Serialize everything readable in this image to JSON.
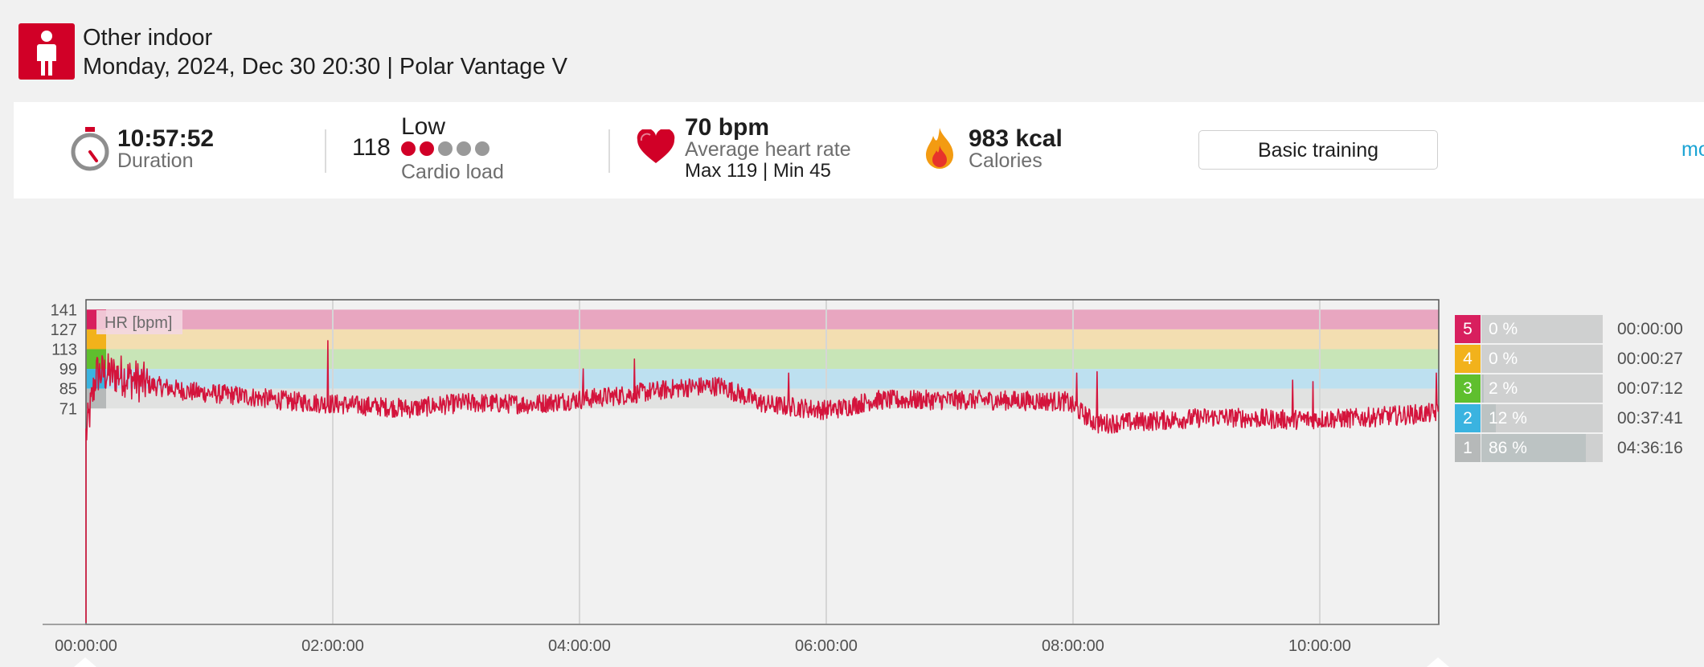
{
  "header": {
    "sport_icon": "person-standing-icon",
    "title": "Other indoor",
    "subtitle": "Monday, 2024, Dec 30 20:30 | Polar Vantage V"
  },
  "summary": {
    "duration": {
      "value": "10:57:52",
      "label": "Duration",
      "icon": "stopwatch-icon"
    },
    "cardio_load": {
      "value": "118",
      "level": "Low",
      "label": "Cardio load",
      "dots_filled": 2,
      "dots_total": 5
    },
    "heart_rate": {
      "value": "70 bpm",
      "label": "Average heart rate",
      "max_min": "Max 119  |  Min 45",
      "icon": "heart-icon"
    },
    "calories": {
      "value": "983 kcal",
      "label": "Calories",
      "icon": "flame-icon"
    },
    "training_button": "Basic training",
    "more_link": "more"
  },
  "colors": {
    "brand": "#d10027",
    "accent_link": "#1aa3d4",
    "hr_line": "#d4143c"
  },
  "chart_data": {
    "type": "line",
    "series_label": "HR [bpm]",
    "x_range_seconds": [
      0,
      39472
    ],
    "xtick_labels": [
      "00:00:00",
      "02:00:00",
      "04:00:00",
      "06:00:00",
      "08:00:00",
      "10:00:00"
    ],
    "ytick_labels": [
      "141",
      "127",
      "113",
      "99",
      "85",
      "71"
    ],
    "ylim": [
      -82,
      148
    ],
    "grid": true,
    "zones": [
      {
        "zone": 5,
        "from": 127,
        "to": 141,
        "color": "#e8a6c0",
        "badge_color": "#d81f5e"
      },
      {
        "zone": 4,
        "from": 113,
        "to": 127,
        "color": "#f3deb1",
        "badge_color": "#f2b21b"
      },
      {
        "zone": 3,
        "from": 99,
        "to": 113,
        "color": "#c8e5b7",
        "badge_color": "#5fbf2e"
      },
      {
        "zone": 2,
        "from": 85,
        "to": 99,
        "color": "#bde0f0",
        "badge_color": "#3ab3e0"
      },
      {
        "zone": 1,
        "from": 71,
        "to": 85,
        "color": "#e1e2e1",
        "badge_color": "#b6b9b9"
      }
    ],
    "hr_profile": [
      [
        0,
        52
      ],
      [
        300,
        96
      ],
      [
        1000,
        95
      ],
      [
        1800,
        88
      ],
      [
        3000,
        83
      ],
      [
        4500,
        80
      ],
      [
        6000,
        76
      ],
      [
        8000,
        73
      ],
      [
        9500,
        71
      ],
      [
        11000,
        75
      ],
      [
        13000,
        74
      ],
      [
        15500,
        80
      ],
      [
        17500,
        86
      ],
      [
        18500,
        87
      ],
      [
        19800,
        74
      ],
      [
        21500,
        70
      ],
      [
        22000,
        71
      ],
      [
        23000,
        77
      ],
      [
        26000,
        77
      ],
      [
        28600,
        76
      ],
      [
        29500,
        60
      ],
      [
        31000,
        62
      ],
      [
        33000,
        65
      ],
      [
        35000,
        63
      ],
      [
        37000,
        64
      ],
      [
        39472,
        68
      ]
    ],
    "hr_spikes": [
      [
        7050,
        119
      ],
      [
        14500,
        99
      ],
      [
        16000,
        106
      ],
      [
        20500,
        96
      ],
      [
        28900,
        96
      ],
      [
        29500,
        97
      ],
      [
        35200,
        91
      ],
      [
        35800,
        90
      ],
      [
        39400,
        96
      ]
    ],
    "hr_min": 45,
    "hr_max": 119
  },
  "zones_legend": [
    {
      "num": "5",
      "pct": "0 %",
      "fraction": 0.0,
      "time": "00:00:00",
      "color": "#d81f5e"
    },
    {
      "num": "4",
      "pct": "0 %",
      "fraction": 0.0,
      "time": "00:00:27",
      "color": "#f2b21b"
    },
    {
      "num": "3",
      "pct": "2 %",
      "fraction": 0.02,
      "time": "00:07:12",
      "color": "#5fbf2e"
    },
    {
      "num": "2",
      "pct": "12 %",
      "fraction": 0.12,
      "time": "00:37:41",
      "color": "#3ab3e0"
    },
    {
      "num": "1",
      "pct": "86 %",
      "fraction": 0.86,
      "time": "04:36:16",
      "color": "#b6b9b9"
    }
  ]
}
